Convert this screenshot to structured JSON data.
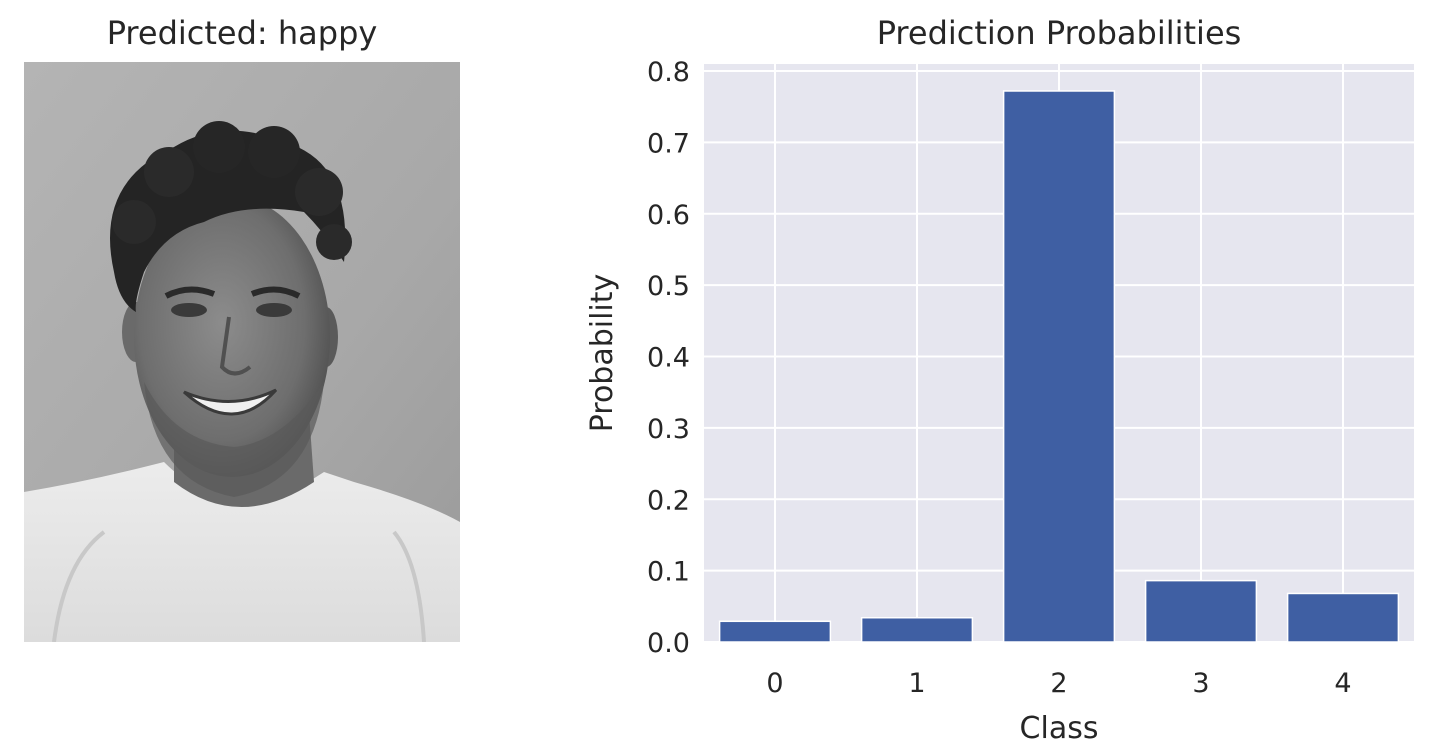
{
  "left_panel": {
    "title": "Predicted: happy"
  },
  "chart_data": {
    "type": "bar",
    "title": "Prediction Probabilities",
    "xlabel": "Class",
    "ylabel": "Probability",
    "categories": [
      "0",
      "1",
      "2",
      "3",
      "4"
    ],
    "values": [
      0.029,
      0.034,
      0.772,
      0.086,
      0.068
    ],
    "ylim": [
      0,
      0.8
    ],
    "yticks": [
      "0.0",
      "0.1",
      "0.2",
      "0.3",
      "0.4",
      "0.5",
      "0.6",
      "0.7",
      "0.8"
    ],
    "grid": true,
    "bar_color": "#3f5fa3",
    "background_color": "#e6e6ef",
    "grid_color": "#ffffff"
  }
}
